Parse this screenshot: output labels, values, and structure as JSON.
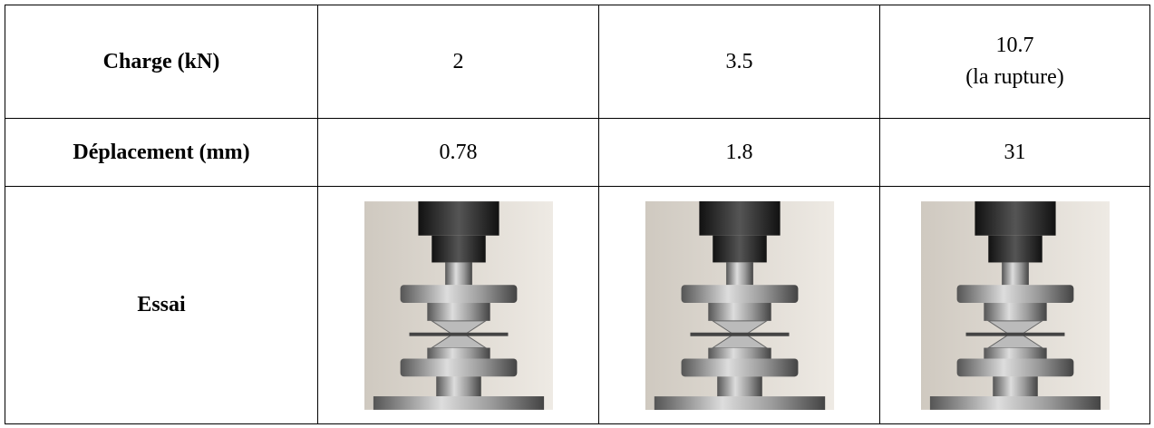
{
  "table": {
    "rows": [
      {
        "header": "Charge (kN)",
        "values": [
          "2",
          "3.5",
          "10.7"
        ],
        "note": "(la rupture)"
      },
      {
        "header": "Déplacement  (mm)",
        "values": [
          "0.78",
          "1.8",
          "31"
        ]
      },
      {
        "header": "Essai"
      }
    ]
  }
}
